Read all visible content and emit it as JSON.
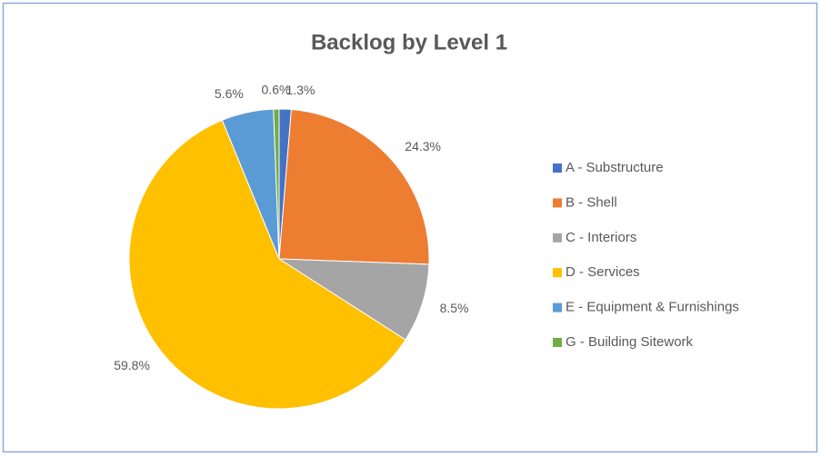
{
  "chart_data": {
    "type": "pie",
    "title": "Backlog by Level 1",
    "categories": [
      "A - Substructure",
      "B - Shell",
      "C - Interiors",
      "D - Services",
      "E - Equipment & Furnishings",
      "G - Building Sitework"
    ],
    "values": [
      1.3,
      24.3,
      8.5,
      59.8,
      5.6,
      0.6
    ],
    "value_labels": [
      "1.3%",
      "24.3%",
      "8.5%",
      "59.8%",
      "5.6%",
      "0.6%"
    ],
    "colors": [
      "#4472c4",
      "#ed7d31",
      "#a5a5a5",
      "#ffc000",
      "#5b9bd5",
      "#70ad47"
    ],
    "legend": "right"
  }
}
